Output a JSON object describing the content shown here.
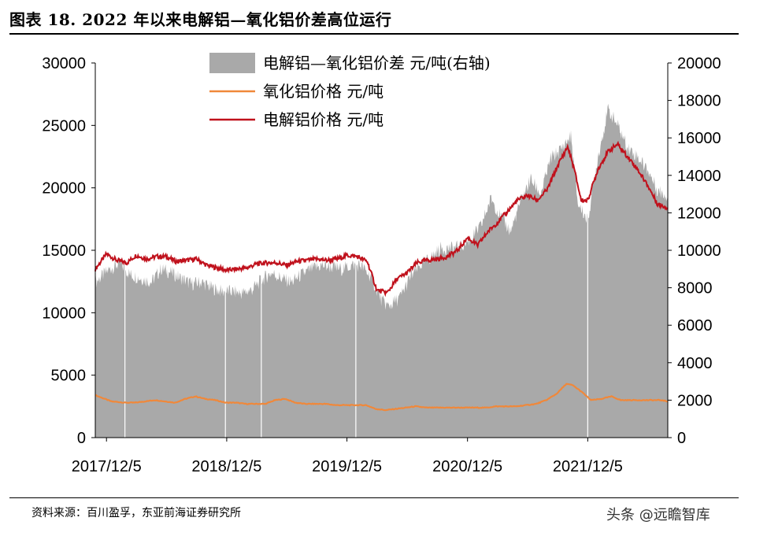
{
  "header": {
    "title": "图表 18. 2022 年以来电解铝—氧化铝价差高位运行"
  },
  "footer": {
    "source": "资料来源：百川盈孚，东亚前海证券研究所",
    "watermark": "头条 @远瞻智库"
  },
  "colors": {
    "spread_fill": "#a9a9a9",
    "alumina_line": "#f0883a",
    "aluminum_line": "#c0111c",
    "axis": "#000000",
    "grid_sep": "#ffffff"
  },
  "chart_data": {
    "type": "line",
    "x_tick_labels": [
      "2017/12/5",
      "2018/12/5",
      "2019/12/5",
      "2020/12/5",
      "2021/12/5"
    ],
    "x_range": [
      "2017-11-01",
      "2022-08-05"
    ],
    "y_left": {
      "ticks": [
        "0",
        "5000",
        "10000",
        "15000",
        "20000",
        "25000",
        "30000"
      ],
      "range": [
        0,
        30000
      ]
    },
    "y_right": {
      "ticks": [
        "0",
        "2000",
        "4000",
        "6000",
        "8000",
        "10000",
        "12000",
        "14000",
        "16000",
        "18000",
        "20000"
      ],
      "range": [
        0,
        20000
      ]
    },
    "legend_position": "top-center",
    "series": [
      {
        "name": "电解铝—氧化铝价差  元/吨(右轴)",
        "kind": "area",
        "axis": "right",
        "x": [
          "2017-11-01",
          "2017-12-15",
          "2018-01-15",
          "2018-02-15",
          "2018-03-20",
          "2018-04-20",
          "2018-05-20",
          "2018-06-20",
          "2018-07-20",
          "2018-08-20",
          "2018-09-20",
          "2018-10-20",
          "2018-11-20",
          "2018-12-20",
          "2019-01-20",
          "2019-02-20",
          "2019-03-20",
          "2019-04-20",
          "2019-05-20",
          "2019-06-20",
          "2019-07-20",
          "2019-08-20",
          "2019-09-20",
          "2019-10-20",
          "2019-11-20",
          "2019-12-20",
          "2020-01-15",
          "2020-02-15",
          "2020-03-20",
          "2020-04-10",
          "2020-05-15",
          "2020-06-15",
          "2020-07-15",
          "2020-08-15",
          "2020-09-15",
          "2020-10-15",
          "2020-11-15",
          "2020-12-15",
          "2021-01-15",
          "2021-02-15",
          "2021-03-15",
          "2021-04-15",
          "2021-05-15",
          "2021-06-15",
          "2021-07-15",
          "2021-08-15",
          "2021-09-15",
          "2021-10-15",
          "2021-11-05",
          "2021-12-05",
          "2022-01-05",
          "2022-02-05",
          "2022-03-05",
          "2022-04-05",
          "2022-05-05",
          "2022-06-05",
          "2022-07-05",
          "2022-08-05"
        ],
        "values": [
          8300,
          9000,
          9300,
          8700,
          8500,
          8300,
          9000,
          8800,
          8500,
          8200,
          8300,
          8000,
          7800,
          7800,
          7700,
          7900,
          8400,
          8800,
          8500,
          8300,
          8700,
          9000,
          9200,
          9100,
          9000,
          9200,
          9200,
          8600,
          7300,
          7000,
          7500,
          8600,
          9200,
          9600,
          10100,
          10100,
          10200,
          10600,
          11300,
          12800,
          11800,
          11000,
          12600,
          13800,
          13000,
          14900,
          15400,
          16100,
          12500,
          11600,
          15000,
          17500,
          16700,
          15500,
          15000,
          14300,
          13200,
          12900
        ]
      },
      {
        "name": "氧化铝价格  元/吨",
        "kind": "line",
        "axis": "left",
        "x": [
          "2017-11-01",
          "2017-11-20",
          "2017-12-20",
          "2018-01-30",
          "2018-03-01",
          "2018-04-01",
          "2018-05-01",
          "2018-06-01",
          "2018-07-01",
          "2018-08-01",
          "2018-09-01",
          "2018-10-01",
          "2018-11-01",
          "2018-12-01",
          "2019-01-01",
          "2019-02-01",
          "2019-03-01",
          "2019-04-01",
          "2019-05-01",
          "2019-06-01",
          "2019-07-01",
          "2019-08-01",
          "2019-09-01",
          "2019-10-01",
          "2019-11-01",
          "2019-12-01",
          "2020-01-01",
          "2020-02-01",
          "2020-03-01",
          "2020-04-01",
          "2020-05-01",
          "2020-06-01",
          "2020-07-01",
          "2020-08-01",
          "2020-09-01",
          "2020-10-01",
          "2020-11-01",
          "2020-12-01",
          "2021-01-01",
          "2021-02-01",
          "2021-03-01",
          "2021-04-01",
          "2021-05-01",
          "2021-06-01",
          "2021-07-01",
          "2021-08-01",
          "2021-09-01",
          "2021-10-01",
          "2021-10-20",
          "2021-11-15",
          "2021-12-15",
          "2022-01-15",
          "2022-02-15",
          "2022-03-15",
          "2022-04-15",
          "2022-05-15",
          "2022-06-15",
          "2022-07-15",
          "2022-08-05"
        ],
        "values": [
          3400,
          3200,
          2900,
          2800,
          2800,
          2900,
          3000,
          2900,
          2800,
          3100,
          3300,
          3100,
          3000,
          2800,
          2800,
          2700,
          2700,
          2700,
          3000,
          3100,
          2800,
          2700,
          2700,
          2700,
          2600,
          2600,
          2600,
          2600,
          2300,
          2200,
          2300,
          2400,
          2500,
          2400,
          2400,
          2400,
          2400,
          2400,
          2400,
          2400,
          2500,
          2500,
          2500,
          2600,
          2700,
          3000,
          3500,
          4300,
          4200,
          3700,
          3000,
          3100,
          3300,
          3000,
          3000,
          3000,
          3000,
          3000,
          2900
        ]
      },
      {
        "name": "电解铝价格  元/吨",
        "kind": "line",
        "axis": "left",
        "x": [
          "2017-11-01",
          "2017-12-05",
          "2018-01-05",
          "2018-02-05",
          "2018-03-05",
          "2018-04-05",
          "2018-05-05",
          "2018-06-05",
          "2018-07-05",
          "2018-08-05",
          "2018-09-05",
          "2018-10-05",
          "2018-11-05",
          "2018-12-05",
          "2019-01-05",
          "2019-02-05",
          "2019-03-05",
          "2019-04-05",
          "2019-05-05",
          "2019-06-05",
          "2019-07-05",
          "2019-08-05",
          "2019-09-05",
          "2019-10-05",
          "2019-11-05",
          "2019-12-05",
          "2020-01-05",
          "2020-02-05",
          "2020-03-05",
          "2020-04-05",
          "2020-05-05",
          "2020-06-05",
          "2020-07-05",
          "2020-08-05",
          "2020-09-05",
          "2020-10-05",
          "2020-11-05",
          "2020-12-05",
          "2021-01-05",
          "2021-02-05",
          "2021-03-05",
          "2021-04-05",
          "2021-05-05",
          "2021-06-05",
          "2021-07-05",
          "2021-08-05",
          "2021-09-05",
          "2021-10-05",
          "2021-10-25",
          "2021-11-15",
          "2021-12-05",
          "2022-01-05",
          "2022-02-05",
          "2022-03-05",
          "2022-04-05",
          "2022-05-05",
          "2022-06-05",
          "2022-07-05",
          "2022-08-05"
        ],
        "values": [
          13500,
          14700,
          14200,
          14000,
          14600,
          14300,
          14500,
          14500,
          14100,
          14200,
          14300,
          13800,
          13600,
          13400,
          13500,
          13600,
          13900,
          14000,
          14000,
          13800,
          14100,
          14200,
          14300,
          14200,
          14300,
          14600,
          14500,
          14100,
          11800,
          11600,
          12700,
          13200,
          14000,
          14200,
          14300,
          14500,
          15000,
          16000,
          15400,
          16500,
          17200,
          18100,
          19000,
          19400,
          19000,
          19900,
          21800,
          23300,
          21500,
          19000,
          19000,
          21500,
          22900,
          23500,
          22500,
          21500,
          20200,
          18700,
          18400
        ]
      }
    ]
  }
}
